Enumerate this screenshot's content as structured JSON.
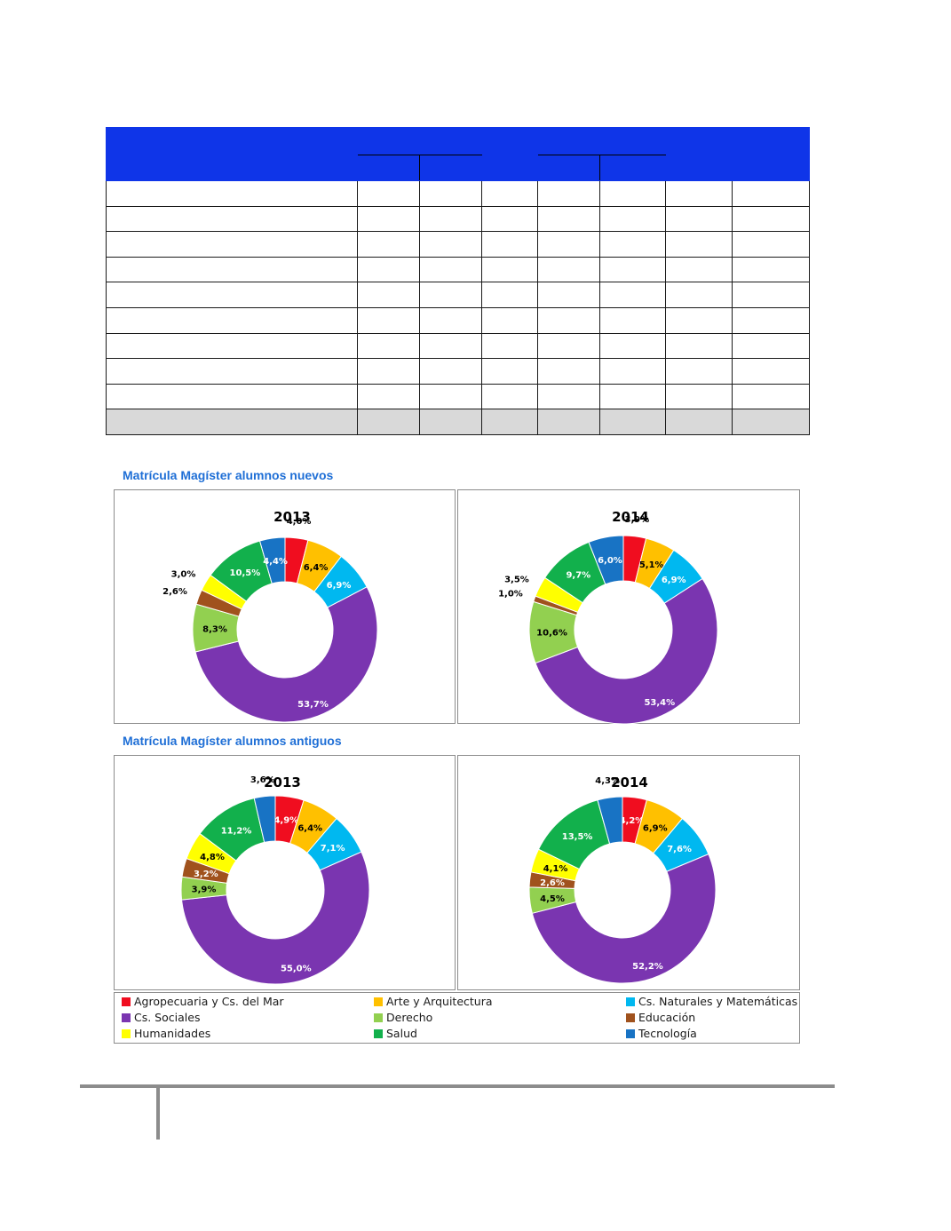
{
  "sections": {
    "nuevos_title": "Matrícula Magíster alumnos nuevos",
    "antiguos_title": "Matrícula Magíster alumnos antiguos"
  },
  "colors": {
    "table_header": "#0f35e8",
    "table_total_row": "#d9d9d9",
    "section_title": "#1f6fd6"
  },
  "legend": [
    {
      "label": "Agropecuaria y Cs. del Mar",
      "color": "#f00d1f"
    },
    {
      "label": "Arte y Arquitectura",
      "color": "#ffc000"
    },
    {
      "label": "Cs. Naturales y Matemáticas",
      "color": "#00b8f0"
    },
    {
      "label": "Cs. Sociales",
      "color": "#7a35b0"
    },
    {
      "label": "Derecho",
      "color": "#92d050"
    },
    {
      "label": "Educación",
      "color": "#a0521d"
    },
    {
      "label": "Humanidades",
      "color": "#ffff00"
    },
    {
      "label": "Salud",
      "color": "#12b04c"
    },
    {
      "label": "Tecnología",
      "color": "#1873c4"
    }
  ],
  "chart_data": [
    {
      "type": "pie",
      "title": "2013",
      "categories": [
        "Agropecuaria y Cs. del Mar",
        "Arte y Arquitectura",
        "Cs. Naturales y Matemáticas",
        "Cs. Sociales",
        "Derecho",
        "Educación",
        "Humanidades",
        "Salud",
        "Tecnología"
      ],
      "values": [
        4.0,
        6.4,
        6.9,
        53.7,
        8.3,
        2.6,
        3.0,
        10.5,
        4.4
      ],
      "labels": [
        "4,0%",
        "6,4%",
        "6,9%",
        "53,7%",
        "8,3%",
        "2,6%",
        "3,0%",
        "10,5%",
        "4,4%"
      ]
    },
    {
      "type": "pie",
      "title": "2014",
      "categories": [
        "Agropecuaria y Cs. del Mar",
        "Arte y Arquitectura",
        "Cs. Naturales y Matemáticas",
        "Cs. Sociales",
        "Derecho",
        "Educación",
        "Humanidades",
        "Salud",
        "Tecnología"
      ],
      "values": [
        3.9,
        5.1,
        6.9,
        53.4,
        10.6,
        1.0,
        3.5,
        9.7,
        6.0
      ],
      "labels": [
        "3,9%",
        "5,1%",
        "6,9%",
        "53,4%",
        "10,6%",
        "1,0%",
        "3,5%",
        "9,7%",
        "6,0%"
      ]
    },
    {
      "type": "pie",
      "title": "2013",
      "categories": [
        "Agropecuaria y Cs. del Mar",
        "Arte y Arquitectura",
        "Cs. Naturales y Matemáticas",
        "Cs. Sociales",
        "Derecho",
        "Educación",
        "Humanidades",
        "Salud",
        "Tecnología"
      ],
      "values": [
        4.9,
        6.4,
        7.1,
        55.0,
        3.9,
        3.2,
        4.8,
        11.2,
        3.6
      ],
      "labels": [
        "4,9%",
        "6,4%",
        "7,1%",
        "55,0%",
        "3,9%",
        "3,2%",
        "4,8%",
        "11,2%",
        "3,6%"
      ]
    },
    {
      "type": "pie",
      "title": "2014",
      "categories": [
        "Agropecuaria y Cs. del Mar",
        "Arte y Arquitectura",
        "Cs. Naturales y Matemáticas",
        "Cs. Sociales",
        "Derecho",
        "Educación",
        "Humanidades",
        "Salud",
        "Tecnología"
      ],
      "values": [
        4.2,
        6.9,
        7.6,
        52.2,
        4.5,
        2.6,
        4.1,
        13.5,
        4.3
      ],
      "labels": [
        "4,2%",
        "6,9%",
        "7,6%",
        "52,2%",
        "4,5%",
        "2,6%",
        "4,1%",
        "13,5%",
        "4,3%"
      ]
    }
  ]
}
